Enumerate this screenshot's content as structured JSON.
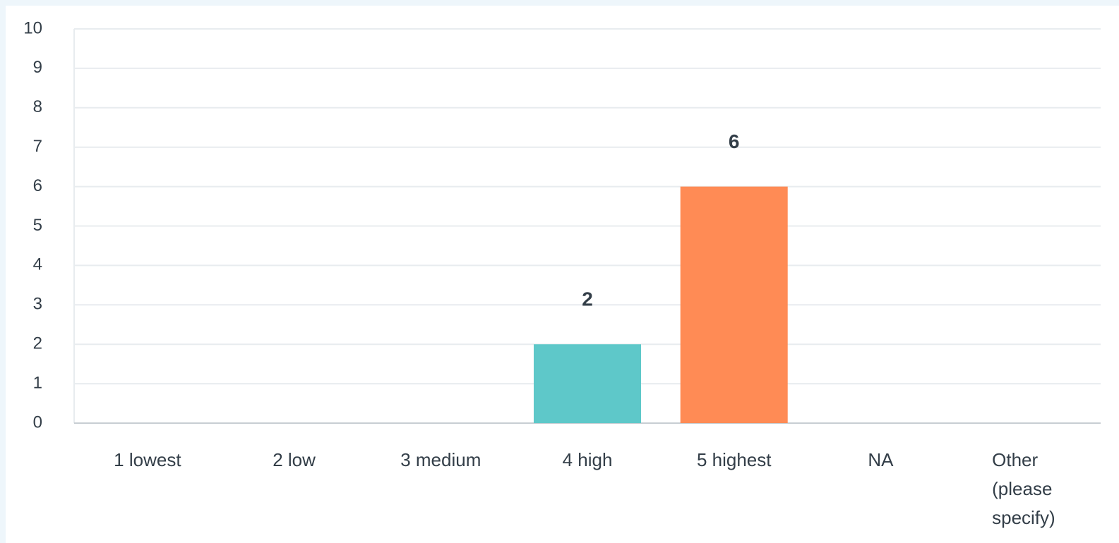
{
  "chart_data": {
    "type": "bar",
    "categories": [
      "1 lowest",
      "2 low",
      "3 medium",
      "4 high",
      "5 highest",
      "NA",
      "Other (please specify)"
    ],
    "values": [
      0,
      0,
      0,
      2,
      6,
      0,
      0
    ],
    "data_labels": [
      "",
      "",
      "",
      "2",
      "6",
      "",
      ""
    ],
    "ylim": [
      0,
      10
    ],
    "yticks": [
      "0",
      "1",
      "2",
      "3",
      "4",
      "5",
      "6",
      "7",
      "8",
      "9",
      "10"
    ],
    "grid": true,
    "bar_colors": [
      "#5ec8c9",
      "#5ec8c9",
      "#5ec8c9",
      "#5ec8c9",
      "#ff8b55",
      "#5ec8c9",
      "#5ec8c9"
    ],
    "colors": {
      "grid": "#e8ecef",
      "axis": "#c8ced3",
      "text": "#333e48"
    }
  }
}
